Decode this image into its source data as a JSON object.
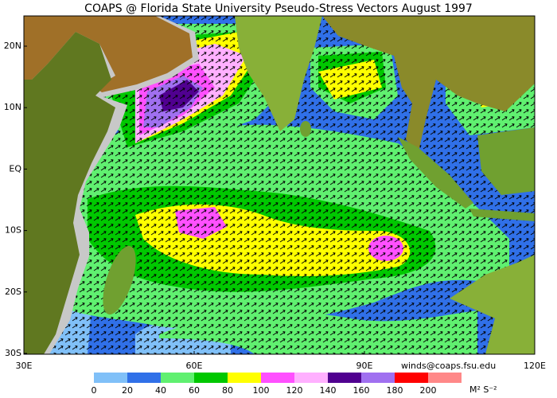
{
  "title": "COAPS @ Florida State University Pseudo-Stress Vectors  August 1997",
  "map": {
    "lat_labels": [
      "20N",
      "10N",
      "EQ",
      "10S",
      "20S",
      "30S"
    ],
    "lon_labels": [
      "30E",
      "60E",
      "90E",
      "120E"
    ]
  },
  "credit": "winds@coaps.fsu.edu",
  "legend": {
    "labels": [
      "0",
      "20",
      "40",
      "60",
      "80",
      "100",
      "120",
      "140",
      "160",
      "180",
      "200"
    ],
    "colors": [
      "#80c0f8",
      "#3070e8",
      "#60f070",
      "#00c800",
      "#ffff00",
      "#ff50ff",
      "#ffb0ff",
      "#500090",
      "#a070f0",
      "#ff0000",
      "#ff8888"
    ],
    "unit": "M² S⁻²"
  }
}
